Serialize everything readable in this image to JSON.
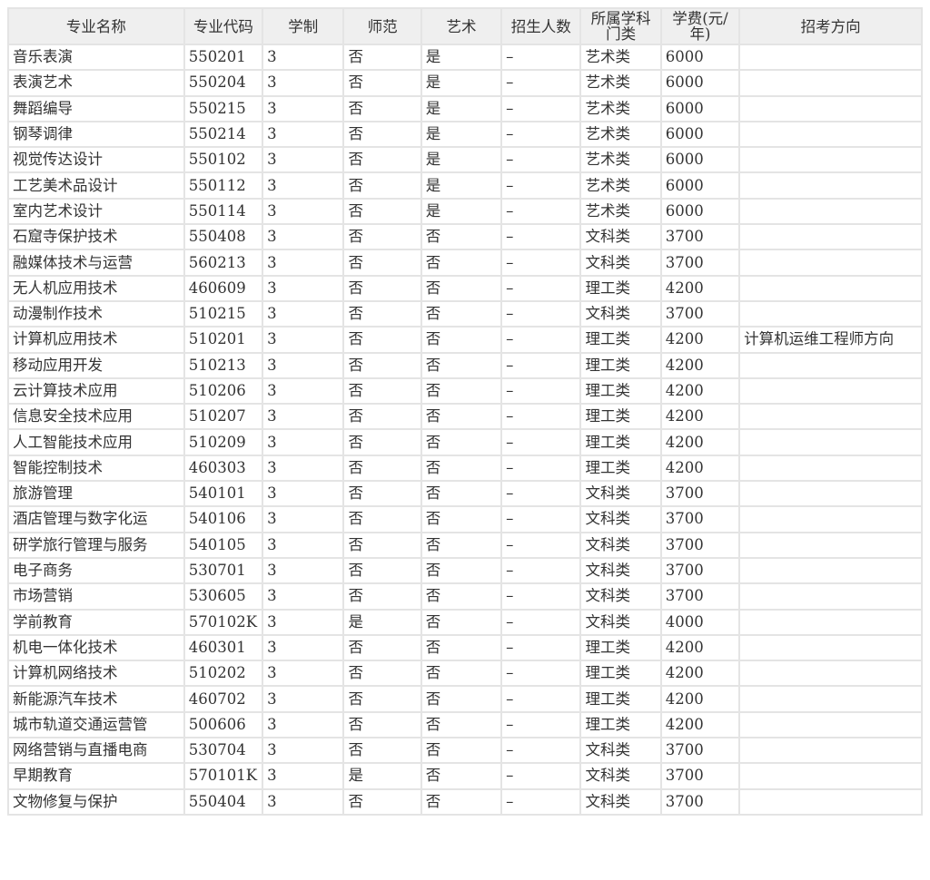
{
  "table": {
    "header": [
      "专业名称",
      "专业代码",
      "学制",
      "师范",
      "艺术",
      "招生人数",
      "所属学科门类",
      "学费(元/年)",
      "招考方向"
    ],
    "rows": [
      [
        "音乐表演",
        "550201",
        "3",
        "否",
        "是",
        "–",
        "艺术类",
        "6000",
        null
      ],
      [
        "表演艺术",
        "550204",
        "3",
        "否",
        "是",
        "–",
        "艺术类",
        "6000",
        null
      ],
      [
        "舞蹈编导",
        "550215",
        "3",
        "否",
        "是",
        "–",
        "艺术类",
        "6000",
        null
      ],
      [
        "钢琴调律",
        "550214",
        "3",
        "否",
        "是",
        "–",
        "艺术类",
        "6000",
        null
      ],
      [
        "视觉传达设计",
        "550102",
        "3",
        "否",
        "是",
        "–",
        "艺术类",
        "6000",
        null
      ],
      [
        "工艺美术品设计",
        "550112",
        "3",
        "否",
        "是",
        "–",
        "艺术类",
        "6000",
        null
      ],
      [
        "室内艺术设计",
        "550114",
        "3",
        "否",
        "是",
        "–",
        "艺术类",
        "6000",
        null
      ],
      [
        "石窟寺保护技术",
        "550408",
        "3",
        "否",
        "否",
        "–",
        "文科类",
        "3700",
        null
      ],
      [
        "融媒体技术与运营",
        "560213",
        "3",
        "否",
        "否",
        "–",
        "文科类",
        "3700",
        null
      ],
      [
        "无人机应用技术",
        "460609",
        "3",
        "否",
        "否",
        "–",
        "理工类",
        "4200",
        null
      ],
      [
        "动漫制作技术",
        "510215",
        "3",
        "否",
        "否",
        "–",
        "文科类",
        "3700",
        null
      ],
      [
        "计算机应用技术",
        "510201",
        "3",
        "否",
        "否",
        "–",
        "理工类",
        "4200",
        "计算机运维工程师方向"
      ],
      [
        "移动应用开发",
        "510213",
        "3",
        "否",
        "否",
        "–",
        "理工类",
        "4200",
        null
      ],
      [
        "云计算技术应用",
        "510206",
        "3",
        "否",
        "否",
        "–",
        "理工类",
        "4200",
        null
      ],
      [
        "信息安全技术应用",
        "510207",
        "3",
        "否",
        "否",
        "–",
        "理工类",
        "4200",
        null
      ],
      [
        "人工智能技术应用",
        "510209",
        "3",
        "否",
        "否",
        "–",
        "理工类",
        "4200",
        null
      ],
      [
        "智能控制技术",
        "460303",
        "3",
        "否",
        "否",
        "–",
        "理工类",
        "4200",
        null
      ],
      [
        "旅游管理",
        "540101",
        "3",
        "否",
        "否",
        "–",
        "文科类",
        "3700",
        null
      ],
      [
        "酒店管理与数字化运",
        "540106",
        "3",
        "否",
        "否",
        "–",
        "文科类",
        "3700",
        null
      ],
      [
        "研学旅行管理与服务",
        "540105",
        "3",
        "否",
        "否",
        "–",
        "文科类",
        "3700",
        null
      ],
      [
        "电子商务",
        "530701",
        "3",
        "否",
        "否",
        "–",
        "文科类",
        "3700",
        null
      ],
      [
        "市场营销",
        "530605",
        "3",
        "否",
        "否",
        "–",
        "文科类",
        "3700",
        null
      ],
      [
        "学前教育",
        "570102K",
        "3",
        "是",
        "否",
        "–",
        "文科类",
        "4000",
        null
      ],
      [
        "机电一体化技术",
        "460301",
        "3",
        "否",
        "否",
        "–",
        "理工类",
        "4200",
        null
      ],
      [
        "计算机网络技术",
        "510202",
        "3",
        "否",
        "否",
        "–",
        "理工类",
        "4200",
        null
      ],
      [
        "新能源汽车技术",
        "460702",
        "3",
        "否",
        "否",
        "–",
        "理工类",
        "4200",
        null
      ],
      [
        "城市轨道交通运营管",
        "500606",
        "3",
        "否",
        "否",
        "–",
        "理工类",
        "4200",
        null
      ],
      [
        "网络营销与直播电商",
        "530704",
        "3",
        "否",
        "否",
        "–",
        "文科类",
        "3700",
        null
      ],
      [
        "早期教育",
        "570101K",
        "3",
        "是",
        "否",
        "–",
        "文科类",
        "3700",
        null
      ],
      [
        "文物修复与保护",
        "550404",
        "3",
        "否",
        "否",
        "–",
        "文科类",
        "3700",
        null
      ]
    ]
  }
}
